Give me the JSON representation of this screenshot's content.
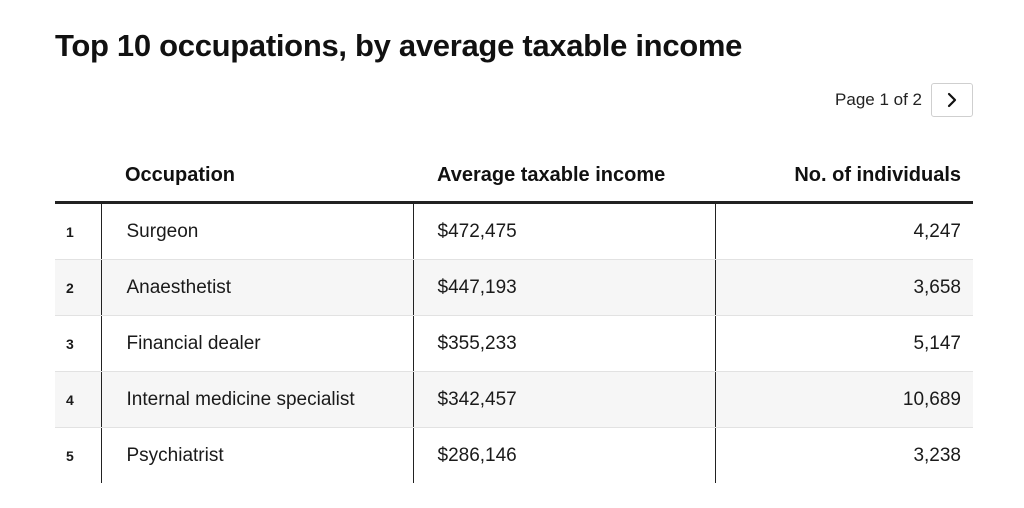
{
  "title": "Top 10 occupations, by average taxable income",
  "pager": {
    "label": "Page 1 of 2",
    "next_icon": "chevron-right-icon"
  },
  "chart_data": {
    "type": "table",
    "columns": [
      "",
      "Occupation",
      "Average taxable income",
      "No. of individuals"
    ],
    "rows": [
      {
        "rank": "1",
        "occupation": "Surgeon",
        "income": "$472,475",
        "individuals": "4,247"
      },
      {
        "rank": "2",
        "occupation": "Anaesthetist",
        "income": "$447,193",
        "individuals": "3,658"
      },
      {
        "rank": "3",
        "occupation": "Financial dealer",
        "income": "$355,233",
        "individuals": "5,147"
      },
      {
        "rank": "4",
        "occupation": "Internal medicine specialist",
        "income": "$342,457",
        "individuals": "10,689"
      },
      {
        "rank": "5",
        "occupation": "Psychiatrist",
        "income": "$286,146",
        "individuals": "3,238"
      }
    ]
  },
  "colors": {
    "row_stripe": "#f6f6f6",
    "rule": "#222222",
    "text": "#1a1a1a"
  }
}
